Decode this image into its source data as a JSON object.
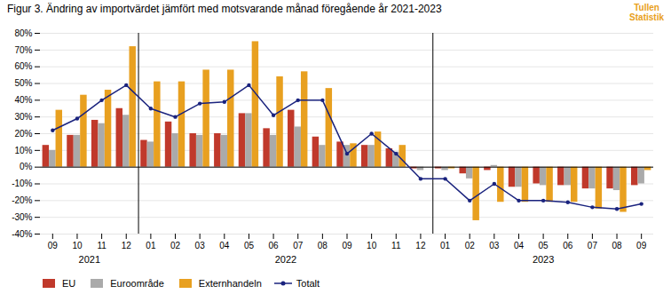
{
  "chart_data": {
    "type": "bar",
    "title": "Figur 3. Ändring av importvärdet jämfört med motsvarande månad föregående år 2021-2023",
    "categories": [
      "09",
      "10",
      "11",
      "12",
      "01",
      "02",
      "03",
      "04",
      "05",
      "06",
      "07",
      "08",
      "09",
      "10",
      "11",
      "12",
      "01",
      "02",
      "03",
      "04",
      "05",
      "06",
      "07",
      "08",
      "09"
    ],
    "year_groups": [
      {
        "label": "2021",
        "start": 0,
        "end": 3
      },
      {
        "label": "2022",
        "start": 4,
        "end": 15
      },
      {
        "label": "2023",
        "start": 16,
        "end": 24
      }
    ],
    "series": [
      {
        "name": "EU",
        "type": "bar",
        "color": "#c0392b",
        "values": [
          13,
          19,
          28,
          35,
          16,
          27,
          20,
          20,
          32,
          23,
          34,
          18,
          15,
          13,
          11,
          -1,
          -1,
          -4,
          -2,
          -12,
          -10,
          -11,
          -13,
          -13,
          -11
        ]
      },
      {
        "name": "Euroområde",
        "type": "bar",
        "color": "#aaaaaa",
        "values": [
          10,
          19,
          26,
          31,
          15,
          20,
          19,
          19,
          32,
          19,
          24,
          13,
          13,
          13,
          9,
          -2,
          -2,
          -7,
          1,
          -12,
          -11,
          -11,
          -13,
          -14,
          -10
        ]
      },
      {
        "name": "Externhandeln",
        "type": "bar",
        "color": "#e8a020",
        "values": [
          34,
          43,
          46,
          72,
          51,
          51,
          58,
          58,
          75,
          54,
          57,
          47,
          14,
          21,
          13,
          0,
          -1,
          -32,
          -21,
          -21,
          -21,
          -21,
          -25,
          -27,
          -2
        ]
      },
      {
        "name": "Totalt",
        "type": "line",
        "color": "#1a237e",
        "marker": "circle",
        "values": [
          22,
          29,
          40,
          49,
          35,
          30,
          38,
          39,
          49,
          31,
          40,
          40,
          8,
          20,
          8,
          -7,
          -7,
          -20,
          -10,
          -20,
          -20,
          -21,
          -24,
          -25,
          -22
        ]
      }
    ],
    "ylim": [
      -40,
      80
    ],
    "yticks": [
      {
        "value": -40,
        "label": "-40%"
      },
      {
        "value": -30,
        "label": "-30%"
      },
      {
        "value": -20,
        "label": "-20%"
      },
      {
        "value": -10,
        "label": "-10%"
      },
      {
        "value": 0,
        "label": "0%"
      },
      {
        "value": 10,
        "label": "10%"
      },
      {
        "value": 20,
        "label": "20%"
      },
      {
        "value": 30,
        "label": "30%"
      },
      {
        "value": 40,
        "label": "40%"
      },
      {
        "value": 50,
        "label": "50%"
      },
      {
        "value": 60,
        "label": "60%"
      },
      {
        "value": 70,
        "label": "70%"
      },
      {
        "value": 80,
        "label": "80%"
      }
    ],
    "grid": true,
    "legend": "lower left",
    "annotations": [
      {
        "text": "Tullen\nStatistik",
        "color": "#e8a020"
      }
    ]
  }
}
